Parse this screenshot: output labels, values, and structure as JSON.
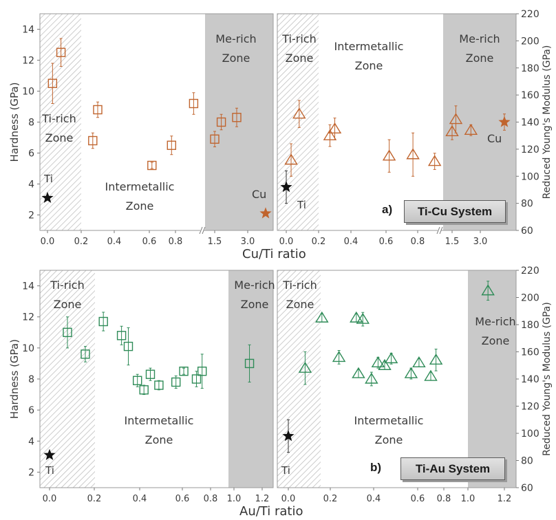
{
  "chart_data": [
    {
      "panel_label": "a)",
      "system_label": "Ti-Cu System",
      "xlabel": "Cu/Ti ratio",
      "ylabel_left": "Hardness (GPa)",
      "ylabel_right": "Reduced Young's Modulus (GPa)",
      "color": "#c0642e",
      "left_ylim": [
        1,
        15
      ],
      "right_ylim": [
        60,
        220
      ],
      "left_yticks": [
        "2",
        "4",
        "6",
        "8",
        "10",
        "12",
        "14"
      ],
      "right_yticks": [
        "60",
        "80",
        "100",
        "120",
        "140",
        "160",
        "180",
        "200",
        "220"
      ],
      "left_xticks": [
        "0.0",
        "0.2",
        "0.4",
        "0.6",
        "0.8",
        "1.5",
        "3.0"
      ],
      "right_xticks": [
        "0.0",
        "0.2",
        "0.4",
        "0.6",
        "0.8",
        "1.5",
        "3.0"
      ],
      "zone_labels": {
        "left": [
          [
            "Ti-rich",
            "Zone"
          ],
          [
            "Intermetallic",
            "Zone"
          ],
          [
            "Me-rich",
            "Zone"
          ]
        ],
        "right": [
          [
            "Ti-rich",
            "Zone"
          ],
          [
            "Intermetallic",
            "Zone"
          ],
          [
            "Me-rich",
            "Zone"
          ]
        ]
      },
      "element_labels": {
        "left_start": "Ti",
        "left_end": "Cu",
        "right_start": "Ti",
        "right_end": "Cu"
      },
      "hardness": {
        "type": "scatter",
        "points": [
          {
            "x": 0.03,
            "y": 10.5,
            "err": 1.3
          },
          {
            "x": 0.08,
            "y": 12.5,
            "err": 0.9
          },
          {
            "x": 0.27,
            "y": 6.8,
            "err": 0.5
          },
          {
            "x": 0.3,
            "y": 8.8,
            "err": 0.5
          },
          {
            "x": 0.62,
            "y": 5.2,
            "err": 0.2
          },
          {
            "x": 0.77,
            "y": 6.5,
            "err": 0.6
          },
          {
            "x": 0.91,
            "y": 9.2,
            "err": 0.7
          },
          {
            "x": 1.5,
            "y": 6.9,
            "err": 0.5
          },
          {
            "x": 1.8,
            "y": 8.0,
            "err": 0.5
          },
          {
            "x": 2.5,
            "y": 8.3,
            "err": 0.6
          }
        ],
        "element_start": {
          "label": "Ti",
          "x": 0.0,
          "y": 3.1
        },
        "element_end": {
          "label": "Cu",
          "x": 4.3,
          "y": 2.1
        }
      },
      "modulus": {
        "type": "scatter",
        "points": [
          {
            "x": 0.03,
            "y": 112,
            "err": 12
          },
          {
            "x": 0.08,
            "y": 146,
            "err": 10
          },
          {
            "x": 0.27,
            "y": 130,
            "err": 8
          },
          {
            "x": 0.3,
            "y": 135,
            "err": 8
          },
          {
            "x": 0.62,
            "y": 115,
            "err": 12
          },
          {
            "x": 0.77,
            "y": 116,
            "err": 16
          },
          {
            "x": 0.9,
            "y": 111,
            "err": 6
          },
          {
            "x": 1.5,
            "y": 133,
            "err": 6
          },
          {
            "x": 1.7,
            "y": 142,
            "err": 10
          },
          {
            "x": 2.5,
            "y": 134,
            "err": 4
          }
        ],
        "element_start": {
          "label": "Ti",
          "x": 0.0,
          "y": 92,
          "err": 12
        },
        "element_end": {
          "label": "Cu",
          "x": 4.3,
          "y": 140,
          "err": 6
        }
      }
    },
    {
      "panel_label": "b)",
      "system_label": "Ti-Au System",
      "xlabel": "Au/Ti ratio",
      "ylabel_left": "Hardness (GPa)",
      "ylabel_right": "Reduced Young's Modulus (GPa)",
      "color": "#2e8b57",
      "left_ylim": [
        1,
        15
      ],
      "right_ylim": [
        60,
        220
      ],
      "left_yticks": [
        "2",
        "4",
        "6",
        "8",
        "10",
        "12",
        "14"
      ],
      "right_yticks": [
        "60",
        "80",
        "100",
        "120",
        "140",
        "160",
        "180",
        "200",
        "220"
      ],
      "left_xticks": [
        "0.0",
        "0.2",
        "0.4",
        "0.6",
        "0.8",
        "1.0",
        "1.2"
      ],
      "right_xticks": [
        "0.0",
        "0.2",
        "0.4",
        "0.6",
        "0.8",
        "1.0",
        "1.2"
      ],
      "zone_labels": {
        "left": [
          [
            "Ti-rich",
            "Zone"
          ],
          [
            "Intermetallic",
            "Zone"
          ],
          [
            "Me-rich",
            "Zone"
          ]
        ],
        "right": [
          [
            "Ti-rich",
            "Zone"
          ],
          [
            "Intermetallic",
            "Zone"
          ],
          [
            "Me-rich",
            "Zone"
          ]
        ]
      },
      "element_labels": {
        "left_start": "Ti",
        "right_start": "Ti"
      },
      "hardness": {
        "type": "scatter",
        "points": [
          {
            "x": 0.08,
            "y": 11.0,
            "err": 1.0
          },
          {
            "x": 0.16,
            "y": 9.6,
            "err": 0.5
          },
          {
            "x": 0.24,
            "y": 11.7,
            "err": 0.6
          },
          {
            "x": 0.32,
            "y": 10.8,
            "err": 0.6
          },
          {
            "x": 0.35,
            "y": 10.1,
            "err": 1.2
          },
          {
            "x": 0.39,
            "y": 7.9,
            "err": 0.4
          },
          {
            "x": 0.42,
            "y": 7.3,
            "err": 0.3
          },
          {
            "x": 0.45,
            "y": 8.3,
            "err": 0.4
          },
          {
            "x": 0.49,
            "y": 7.6,
            "err": 0.3
          },
          {
            "x": 0.57,
            "y": 7.8,
            "err": 0.4
          },
          {
            "x": 0.61,
            "y": 8.5,
            "err": 0.2
          },
          {
            "x": 0.7,
            "y": 8.0,
            "err": 0.5
          },
          {
            "x": 0.74,
            "y": 8.5,
            "err": 1.1
          },
          {
            "x": 1.11,
            "y": 9.0,
            "err": 1.2
          }
        ],
        "element_start": {
          "label": "Ti",
          "x": 0.0,
          "y": 3.1
        }
      },
      "modulus": {
        "type": "scatter",
        "points": [
          {
            "x": 0.08,
            "y": 148,
            "err": 12
          },
          {
            "x": 0.16,
            "y": 185,
            "err": 3
          },
          {
            "x": 0.24,
            "y": 156,
            "err": 5
          },
          {
            "x": 0.32,
            "y": 185,
            "err": 3
          },
          {
            "x": 0.35,
            "y": 184,
            "err": 5
          },
          {
            "x": 0.33,
            "y": 144,
            "err": 3
          },
          {
            "x": 0.39,
            "y": 140,
            "err": 5
          },
          {
            "x": 0.42,
            "y": 152,
            "err": 4
          },
          {
            "x": 0.45,
            "y": 150,
            "err": 3
          },
          {
            "x": 0.48,
            "y": 155,
            "err": 4
          },
          {
            "x": 0.57,
            "y": 144,
            "err": 4
          },
          {
            "x": 0.61,
            "y": 152,
            "err": 3
          },
          {
            "x": 0.7,
            "y": 142,
            "err": 3
          },
          {
            "x": 0.74,
            "y": 154,
            "err": 8
          },
          {
            "x": 1.11,
            "y": 205,
            "err": 7
          }
        ],
        "element_start": {
          "label": "Ti",
          "x": 0.0,
          "y": 98,
          "err": 12
        }
      }
    }
  ]
}
